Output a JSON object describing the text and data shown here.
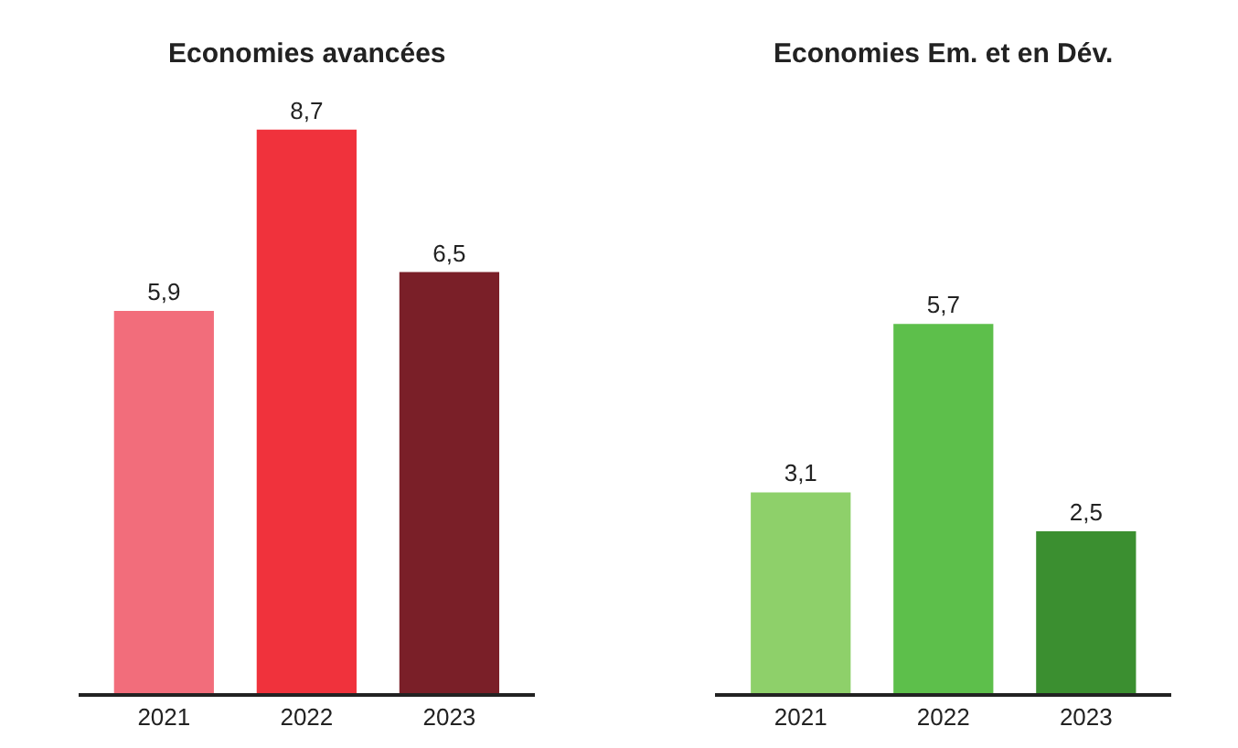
{
  "chart_data": [
    {
      "type": "bar",
      "title": "Economies avancées",
      "categories": [
        "2021",
        "2022",
        "2023"
      ],
      "values": [
        5.9,
        8.7,
        6.5
      ],
      "colors": [
        "#f26d7b",
        "#f0323c",
        "#7a1f28"
      ],
      "value_labels": [
        "5,9",
        "8,7",
        "6,5"
      ],
      "tick_labels": "x"
    },
    {
      "type": "bar",
      "title": "Economies Em. et en Dév.",
      "categories": [
        "2021",
        "2022",
        "2023"
      ],
      "values": [
        3.1,
        5.7,
        2.5
      ],
      "colors": [
        "#8ed06a",
        "#5dbf4b",
        "#3b8f30"
      ],
      "value_labels": [
        "3,1",
        "5,7",
        "2,5"
      ],
      "tick_labels": "x"
    }
  ]
}
